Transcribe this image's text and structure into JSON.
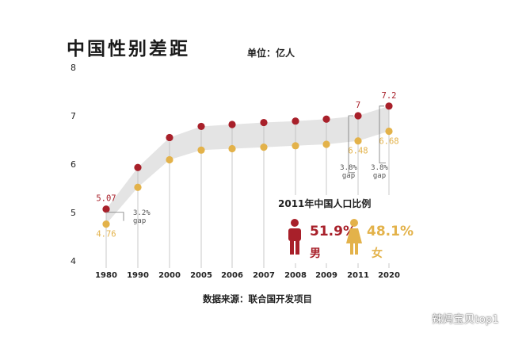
{
  "title": "中国性别差距",
  "unit": "单位：亿人",
  "source": "数据来源：联合国开发项目",
  "colors": {
    "male": "#a8202a",
    "female": "#e3b24a",
    "band": "#e4e4e4",
    "axis_text": "#222222"
  },
  "chart_data": {
    "type": "line",
    "categories": [
      "1980",
      "1990",
      "2000",
      "2005",
      "2006",
      "2007",
      "2008",
      "2009",
      "2011",
      "2020"
    ],
    "series": [
      {
        "name": "男",
        "values": [
          5.07,
          5.93,
          6.55,
          6.78,
          6.82,
          6.86,
          6.89,
          6.93,
          7.0,
          7.2
        ]
      },
      {
        "name": "女",
        "values": [
          4.76,
          5.52,
          6.09,
          6.29,
          6.32,
          6.35,
          6.38,
          6.41,
          6.48,
          6.68
        ]
      }
    ],
    "y_ticks": [
      "4",
      "5",
      "6",
      "7",
      "8"
    ],
    "ylim": [
      4,
      8
    ],
    "grid": false,
    "data_labels": [
      {
        "series": "男",
        "category": "1980",
        "text": "5.07"
      },
      {
        "series": "女",
        "category": "1980",
        "text": "4.76"
      },
      {
        "series": "男",
        "category": "2011",
        "text": "7"
      },
      {
        "series": "女",
        "category": "2011",
        "text": "6.48"
      },
      {
        "series": "男",
        "category": "2020",
        "text": "7.2"
      },
      {
        "series": "女",
        "category": "2020",
        "text": "6.68"
      }
    ],
    "gap_notes": [
      {
        "category": "1980",
        "pct": "3.2%",
        "word": "gap"
      },
      {
        "category": "2011",
        "pct": "3.8%",
        "word": "gap"
      },
      {
        "category": "2020",
        "pct": "3.8%",
        "word": "gap"
      }
    ]
  },
  "inset": {
    "title": "2011年中国人口比例",
    "male_pct": "51.9%",
    "male_label": "男",
    "female_pct": "48.1%",
    "female_label": "女",
    "male_icon": "man-icon",
    "female_icon": "woman-icon"
  },
  "watermark": {
    "text": "辣妈宝贝top1",
    "icon": "wechat-icon"
  }
}
